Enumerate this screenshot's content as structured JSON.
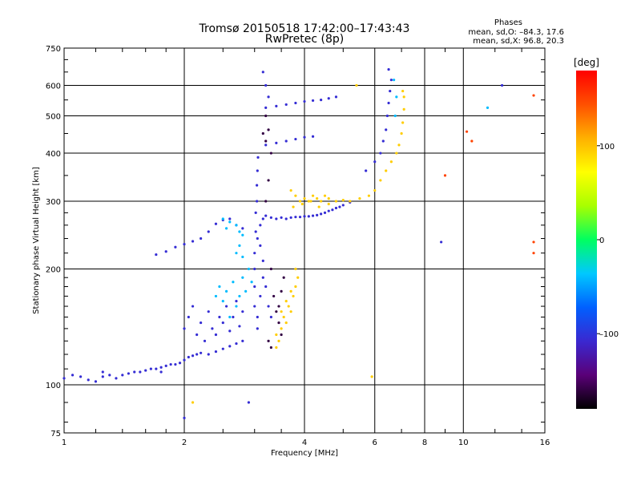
{
  "title": "Tromsø 20150518 17:42:00–17:43:43",
  "subtitle": "RwPretec (8p)",
  "stats": {
    "label": "Phases",
    "line_o": "mean, sd,O: –84.3, 17.6",
    "line_x": "mean, sd,X:  96.8, 20.3"
  },
  "colorbar": {
    "label": "[deg]",
    "ticks": [
      "100",
      "0",
      "–100"
    ],
    "tick_values": [
      100,
      0,
      -100
    ],
    "range": [
      -180,
      180
    ],
    "colors": [
      "#000000",
      "#5a0078",
      "#3a28d0",
      "#0060ff",
      "#00c8ff",
      "#00ff60",
      "#a8ff00",
      "#ffff00",
      "#ffb000",
      "#ff5000",
      "#ff0000"
    ]
  },
  "chart_data": {
    "type": "scatter",
    "title": "Tromsø 20150518 17:42:00–17:43:43",
    "subtitle": "RwPretec (8p)",
    "xlabel": "Frequency [MHz]",
    "ylabel": "Stationary phase Virtual Height [km]",
    "xscale": "log",
    "yscale": "log",
    "xlim": [
      1,
      16
    ],
    "ylim": [
      75,
      750
    ],
    "xticks": [
      1,
      2,
      4,
      6,
      8,
      10,
      16
    ],
    "xtick_labels": [
      "1",
      "2",
      "4",
      "6",
      "8",
      "10",
      "16"
    ],
    "yticks": [
      75,
      100,
      200,
      300,
      400,
      500,
      600,
      750
    ],
    "ytick_labels": [
      "75",
      "100",
      "200",
      "300",
      "400",
      "500",
      "600",
      "750"
    ],
    "grid": true,
    "colorbar_label": "[deg]",
    "series": [
      {
        "color_value": -105,
        "points": [
          [
            1.0,
            104
          ],
          [
            1.05,
            106
          ],
          [
            1.1,
            105
          ],
          [
            1.15,
            103
          ],
          [
            1.2,
            102
          ],
          [
            1.25,
            105
          ],
          [
            1.3,
            106
          ],
          [
            1.35,
            104
          ],
          [
            1.4,
            106
          ],
          [
            1.45,
            107
          ],
          [
            1.5,
            108
          ],
          [
            1.55,
            108
          ],
          [
            1.6,
            109
          ],
          [
            1.65,
            110
          ],
          [
            1.7,
            110
          ],
          [
            1.75,
            111
          ],
          [
            1.8,
            112
          ],
          [
            1.85,
            113
          ],
          [
            1.9,
            113
          ],
          [
            1.95,
            114
          ],
          [
            2.0,
            116
          ],
          [
            2.05,
            118
          ],
          [
            2.1,
            119
          ],
          [
            2.15,
            120
          ],
          [
            2.2,
            121
          ],
          [
            2.3,
            120
          ],
          [
            2.4,
            122
          ],
          [
            2.5,
            124
          ],
          [
            2.6,
            126
          ],
          [
            2.7,
            128
          ],
          [
            2.8,
            130
          ],
          [
            2.0,
            140
          ],
          [
            2.05,
            150
          ],
          [
            2.1,
            160
          ],
          [
            2.15,
            135
          ],
          [
            2.2,
            145
          ],
          [
            2.25,
            130
          ],
          [
            2.3,
            155
          ],
          [
            2.35,
            140
          ],
          [
            2.4,
            135
          ],
          [
            2.45,
            150
          ],
          [
            2.5,
            145
          ],
          [
            2.55,
            160
          ],
          [
            2.6,
            138
          ],
          [
            2.65,
            150
          ],
          [
            2.7,
            165
          ],
          [
            2.75,
            142
          ],
          [
            2.8,
            155
          ],
          [
            1.7,
            218
          ],
          [
            1.8,
            222
          ],
          [
            1.9,
            228
          ],
          [
            2.0,
            232
          ],
          [
            2.1,
            236
          ],
          [
            2.2,
            240
          ],
          [
            2.3,
            250
          ],
          [
            2.4,
            262
          ],
          [
            2.5,
            268
          ],
          [
            2.6,
            270
          ],
          [
            2.7,
            260
          ],
          [
            2.8,
            255
          ],
          [
            3.05,
            240
          ],
          [
            3.1,
            260
          ],
          [
            3.15,
            270
          ],
          [
            3.2,
            275
          ],
          [
            3.3,
            272
          ],
          [
            3.4,
            270
          ],
          [
            3.5,
            272
          ],
          [
            3.6,
            270
          ],
          [
            3.7,
            272
          ],
          [
            3.8,
            273
          ],
          [
            3.9,
            273
          ],
          [
            4.0,
            274
          ],
          [
            4.1,
            274
          ],
          [
            4.2,
            275
          ],
          [
            4.3,
            276
          ],
          [
            4.4,
            278
          ],
          [
            4.5,
            280
          ],
          [
            4.6,
            283
          ],
          [
            4.7,
            285
          ],
          [
            4.8,
            288
          ],
          [
            4.9,
            290
          ],
          [
            5.0,
            293
          ],
          [
            5.2,
            298
          ],
          [
            3.0,
            200
          ],
          [
            3.0,
            220
          ],
          [
            3.02,
            250
          ],
          [
            3.02,
            280
          ],
          [
            3.04,
            300
          ],
          [
            3.04,
            330
          ],
          [
            3.05,
            360
          ],
          [
            3.06,
            390
          ],
          [
            3.0,
            180
          ],
          [
            3.0,
            160
          ],
          [
            3.05,
            150
          ],
          [
            3.05,
            140
          ],
          [
            3.1,
            170
          ],
          [
            3.15,
            190
          ],
          [
            3.1,
            230
          ],
          [
            3.15,
            210
          ],
          [
            3.2,
            180
          ],
          [
            3.25,
            160
          ],
          [
            3.3,
            150
          ],
          [
            3.2,
            525
          ],
          [
            3.4,
            530
          ],
          [
            3.6,
            535
          ],
          [
            3.8,
            540
          ],
          [
            4.0,
            545
          ],
          [
            4.2,
            548
          ],
          [
            4.4,
            550
          ],
          [
            4.6,
            555
          ],
          [
            4.8,
            560
          ],
          [
            3.2,
            420
          ],
          [
            3.4,
            425
          ],
          [
            3.6,
            430
          ],
          [
            3.8,
            435
          ],
          [
            4.0,
            440
          ],
          [
            4.2,
            442
          ],
          [
            3.25,
            560
          ],
          [
            3.2,
            600
          ],
          [
            3.15,
            650
          ],
          [
            5.7,
            360
          ],
          [
            6.0,
            380
          ],
          [
            6.2,
            400
          ],
          [
            6.3,
            430
          ],
          [
            6.4,
            460
          ],
          [
            6.45,
            500
          ],
          [
            6.5,
            540
          ],
          [
            6.55,
            580
          ],
          [
            6.6,
            620
          ],
          [
            6.5,
            660
          ],
          [
            1.25,
            108
          ],
          [
            1.75,
            108
          ],
          [
            2.0,
            82
          ],
          [
            2.9,
            90
          ],
          [
            8.8,
            235
          ],
          [
            12.5,
            600
          ]
        ]
      },
      {
        "color_value": -160,
        "points": [
          [
            3.2,
            500
          ],
          [
            3.25,
            460
          ],
          [
            3.3,
            400
          ],
          [
            3.25,
            340
          ],
          [
            3.2,
            300
          ],
          [
            3.3,
            200
          ],
          [
            3.35,
            170
          ],
          [
            3.4,
            155
          ],
          [
            3.45,
            145
          ],
          [
            3.5,
            135
          ],
          [
            3.25,
            130
          ],
          [
            3.3,
            125
          ],
          [
            3.45,
            160
          ],
          [
            3.5,
            175
          ],
          [
            3.55,
            190
          ],
          [
            3.15,
            450
          ],
          [
            3.2,
            430
          ]
        ]
      },
      {
        "color_value": -40,
        "points": [
          [
            2.4,
            170
          ],
          [
            2.45,
            180
          ],
          [
            2.5,
            165
          ],
          [
            2.55,
            175
          ],
          [
            2.6,
            150
          ],
          [
            2.65,
            185
          ],
          [
            2.7,
            160
          ],
          [
            2.75,
            170
          ],
          [
            2.8,
            190
          ],
          [
            2.85,
            175
          ],
          [
            2.9,
            200
          ],
          [
            2.95,
            185
          ],
          [
            2.5,
            270
          ],
          [
            2.55,
            255
          ],
          [
            2.6,
            265
          ],
          [
            2.7,
            260
          ],
          [
            2.75,
            250
          ],
          [
            2.8,
            245
          ],
          [
            2.7,
            220
          ],
          [
            2.75,
            230
          ],
          [
            2.8,
            215
          ],
          [
            6.7,
            620
          ],
          [
            6.8,
            560
          ],
          [
            11.5,
            525
          ],
          [
            6.75,
            500
          ]
        ]
      },
      {
        "color_value": 95,
        "points": [
          [
            3.4,
            125
          ],
          [
            3.45,
            130
          ],
          [
            3.5,
            140
          ],
          [
            3.55,
            150
          ],
          [
            3.6,
            145
          ],
          [
            3.65,
            160
          ],
          [
            3.7,
            155
          ],
          [
            3.75,
            170
          ],
          [
            3.8,
            180
          ],
          [
            3.85,
            190
          ],
          [
            3.4,
            135
          ],
          [
            3.5,
            155
          ],
          [
            3.6,
            165
          ],
          [
            3.7,
            175
          ],
          [
            3.8,
            200
          ],
          [
            3.7,
            320
          ],
          [
            3.8,
            310
          ],
          [
            3.9,
            300
          ],
          [
            4.0,
            305
          ],
          [
            4.1,
            300
          ],
          [
            4.2,
            310
          ],
          [
            4.3,
            305
          ],
          [
            4.4,
            300
          ],
          [
            4.5,
            310
          ],
          [
            4.6,
            305
          ],
          [
            4.8,
            300
          ],
          [
            5.0,
            302
          ],
          [
            5.2,
            300
          ],
          [
            5.5,
            305
          ],
          [
            5.8,
            310
          ],
          [
            6.0,
            320
          ],
          [
            6.2,
            340
          ],
          [
            6.4,
            360
          ],
          [
            6.6,
            380
          ],
          [
            6.8,
            400
          ],
          [
            6.9,
            420
          ],
          [
            7.0,
            450
          ],
          [
            7.05,
            480
          ],
          [
            7.1,
            520
          ],
          [
            7.1,
            560
          ],
          [
            7.05,
            580
          ],
          [
            3.75,
            290
          ],
          [
            3.95,
            295
          ],
          [
            4.15,
            300
          ],
          [
            4.35,
            290
          ],
          [
            4.6,
            295
          ],
          [
            5.4,
            600
          ],
          [
            5.9,
            105
          ],
          [
            2.1,
            90
          ]
        ]
      },
      {
        "color_value": 150,
        "points": [
          [
            9.0,
            350
          ],
          [
            10.5,
            430
          ],
          [
            10.2,
            455
          ],
          [
            15.0,
            235
          ],
          [
            15.0,
            220
          ],
          [
            15.0,
            565
          ]
        ]
      }
    ]
  }
}
